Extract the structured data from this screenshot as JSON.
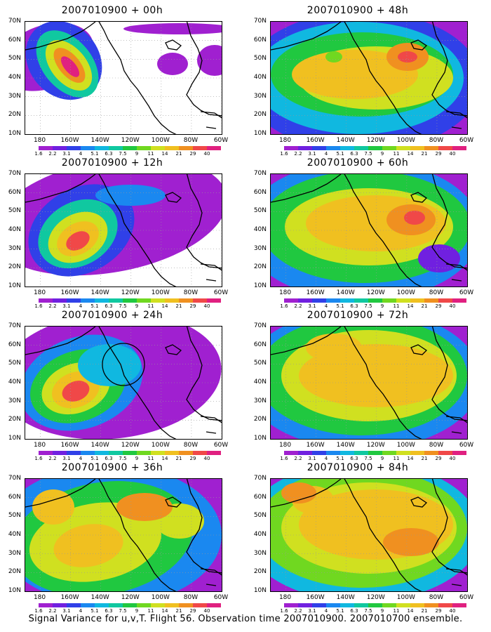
{
  "caption": "Signal Variance for u,v,T. Flight 56. Observation time 2007010900. 2007010700 ensemble.",
  "lat_labels": [
    "70N",
    "60N",
    "50N",
    "40N",
    "30N",
    "20N",
    "10N"
  ],
  "lon_labels": [
    "180",
    "160W",
    "140W",
    "120W",
    "100W",
    "80W",
    "60W"
  ],
  "colorbar": {
    "labels": [
      "1.6",
      "2.2",
      "3.1",
      "4",
      "5.1",
      "6.3",
      "7.5",
      "9",
      "11",
      "14",
      "21",
      "29",
      "40"
    ],
    "colors": [
      "#a020d0",
      "#7020e0",
      "#3040e8",
      "#1a88f0",
      "#10b8e0",
      "#10c8a0",
      "#20c840",
      "#70d820",
      "#d0e020",
      "#f0c020",
      "#f09020",
      "#f04848",
      "#e02080"
    ]
  },
  "panels": [
    {
      "title": "2007010900 + 00h",
      "lead": "00h"
    },
    {
      "title": "2007010900 + 48h",
      "lead": "48h"
    },
    {
      "title": "2007010900 + 12h",
      "lead": "12h"
    },
    {
      "title": "2007010900 + 60h",
      "lead": "60h"
    },
    {
      "title": "2007010900 + 24h",
      "lead": "24h"
    },
    {
      "title": "2007010900 + 72h",
      "lead": "72h"
    },
    {
      "title": "2007010900 + 36h",
      "lead": "36h"
    },
    {
      "title": "2007010900 + 84h",
      "lead": "84h"
    }
  ]
}
